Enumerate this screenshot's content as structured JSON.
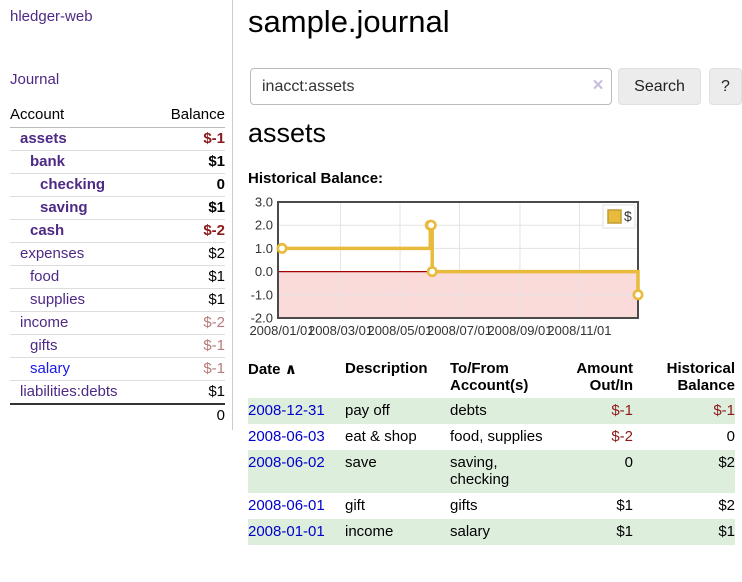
{
  "sidebar": {
    "brand": "hledger-web",
    "journal_link": "Journal",
    "accounts_table": {
      "col_account": "Account",
      "col_balance": "Balance",
      "rows": [
        {
          "name": "assets",
          "level": 1,
          "bold": true,
          "balance": "$-1",
          "neg": "strong",
          "link": "purple"
        },
        {
          "name": "bank",
          "level": 2,
          "bold": true,
          "balance": "$1",
          "neg": "none",
          "link": "purple"
        },
        {
          "name": "checking",
          "level": 3,
          "bold": true,
          "balance": "0",
          "neg": "none",
          "link": "purple"
        },
        {
          "name": "saving",
          "level": 3,
          "bold": true,
          "balance": "$1",
          "neg": "none",
          "link": "purple"
        },
        {
          "name": "cash",
          "level": 2,
          "bold": true,
          "balance": "$-2",
          "neg": "strong",
          "link": "purple"
        },
        {
          "name": "expenses",
          "level": 1,
          "bold": false,
          "balance": "$2",
          "neg": "none",
          "link": "purple"
        },
        {
          "name": "food",
          "level": 2,
          "bold": false,
          "balance": "$1",
          "neg": "none",
          "link": "purple"
        },
        {
          "name": "supplies",
          "level": 2,
          "bold": false,
          "balance": "$1",
          "neg": "none",
          "link": "purple"
        },
        {
          "name": "income",
          "level": 1,
          "bold": false,
          "balance": "$-2",
          "neg": "soft",
          "link": "purple"
        },
        {
          "name": "gifts",
          "level": 2,
          "bold": false,
          "balance": "$-1",
          "neg": "soft",
          "link": "purple"
        },
        {
          "name": "salary",
          "level": 2,
          "bold": false,
          "balance": "$-1",
          "neg": "soft",
          "link": "blue"
        },
        {
          "name": "liabilities:debts",
          "level": 1,
          "bold": false,
          "balance": "$1",
          "neg": "none",
          "link": "purple"
        }
      ],
      "total": "0"
    }
  },
  "header": {
    "title": "sample.journal"
  },
  "search": {
    "value": "inacct:assets",
    "clear_icon": "×",
    "button_label": "Search",
    "help_label": "?"
  },
  "account_page": {
    "heading": "assets",
    "chart_label": "Historical Balance:"
  },
  "chart_data": {
    "type": "line",
    "step": true,
    "title": "Historical Balance",
    "series": [
      {
        "name": "$",
        "color": "#e8bb3d",
        "points": [
          {
            "date": "2008-01-01",
            "value": 1
          },
          {
            "date": "2008-06-01",
            "value": 2
          },
          {
            "date": "2008-06-02",
            "value": 2
          },
          {
            "date": "2008-06-03",
            "value": 0
          },
          {
            "date": "2008-12-31",
            "value": -1
          }
        ]
      }
    ],
    "ylim": [
      -2,
      3
    ],
    "yticks": [
      "3.0",
      "2.0",
      "1.0",
      "0.0",
      "-1.0",
      "-2.0"
    ],
    "xticks": [
      {
        "label": "2008/01/01",
        "day": 0
      },
      {
        "label": "2008/03/01",
        "day": 60
      },
      {
        "label": "2008/05/01",
        "day": 121
      },
      {
        "label": "2008/07/01",
        "day": 182
      },
      {
        "label": "2008/09/01",
        "day": 244
      },
      {
        "label": "2008/11/01",
        "day": 305
      }
    ],
    "x_total_days": 365,
    "legend": {
      "label": "$",
      "position": "top-right"
    },
    "grid": true,
    "colors": {
      "negative_region": "#fbdada",
      "zero_line": "#a40000",
      "gridline": "#e3e3e3",
      "plot_border": "#4a4a4a"
    }
  },
  "register": {
    "sort_icon": "∧",
    "columns": {
      "date": "Date",
      "description": "Description",
      "accounts": "To/From Account(s)",
      "amount": "Amount Out/In",
      "balance": "Historical Balance"
    },
    "rows": [
      {
        "date": "2008-12-31",
        "description": "pay off",
        "accounts": "debts",
        "amount": "$-1",
        "amount_neg": true,
        "balance": "$-1",
        "balance_neg": true
      },
      {
        "date": "2008-06-03",
        "description": "eat & shop",
        "accounts": "food, supplies",
        "amount": "$-2",
        "amount_neg": true,
        "balance": "0",
        "balance_neg": false
      },
      {
        "date": "2008-06-02",
        "description": "save",
        "accounts": "saving, checking",
        "amount": "0",
        "amount_neg": false,
        "balance": "$2",
        "balance_neg": false
      },
      {
        "date": "2008-06-01",
        "description": "gift",
        "accounts": "gifts",
        "amount": "$1",
        "amount_neg": false,
        "balance": "$2",
        "balance_neg": false
      },
      {
        "date": "2008-01-01",
        "description": "income",
        "accounts": "salary",
        "amount": "$1",
        "amount_neg": false,
        "balance": "$1",
        "balance_neg": false
      }
    ]
  }
}
